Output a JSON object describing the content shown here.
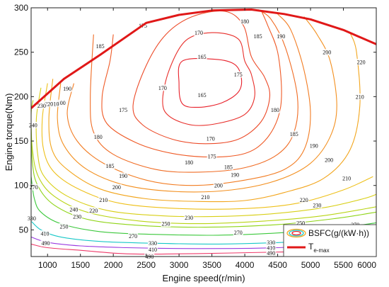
{
  "chart_data": {
    "type": "line",
    "title": "",
    "xlabel": "Engine speed(r/min)",
    "ylabel": "Engine torque(Nm)",
    "xlim": [
      750,
      6000
    ],
    "ylim": [
      20,
      300
    ],
    "xticks": [
      1000,
      1500,
      2000,
      2500,
      3000,
      3500,
      4000,
      4500,
      5000,
      5500,
      6000
    ],
    "yticks": [
      50,
      100,
      150,
      200,
      250,
      300
    ],
    "grid": false,
    "legend_position": "bottom-right",
    "legend": [
      {
        "label": "BSFC(g/(kW·h))",
        "kind": "contour"
      },
      {
        "label": "T",
        "subscript": "e-max",
        "kind": "line",
        "color": "#e01818"
      }
    ],
    "max_torque_curve": {
      "name": "T_e-max",
      "color": "#e01818",
      "points": [
        [
          750,
          187
        ],
        [
          1250,
          220
        ],
        [
          1800,
          247
        ],
        [
          2500,
          283
        ],
        [
          3000,
          292
        ],
        [
          3500,
          297
        ],
        [
          4100,
          298
        ],
        [
          4600,
          293
        ],
        [
          5000,
          287
        ],
        [
          5500,
          275
        ],
        [
          6000,
          259
        ]
      ]
    },
    "contours": [
      {
        "level": 165,
        "color": "#e8202a",
        "closed": true,
        "points": [
          [
            3000,
            215
          ],
          [
            3050,
            240
          ],
          [
            3550,
            242
          ],
          [
            3850,
            236
          ],
          [
            3950,
            220
          ],
          [
            3900,
            205
          ],
          [
            3650,
            193
          ],
          [
            3300,
            188
          ],
          [
            3050,
            192
          ]
        ]
      },
      {
        "level": 170,
        "color": "#e82e2a",
        "closed": true,
        "points": [
          [
            2750,
            195
          ],
          [
            2850,
            230
          ],
          [
            3100,
            263
          ],
          [
            3500,
            272
          ],
          [
            3900,
            265
          ],
          [
            4000,
            240
          ],
          [
            4100,
            225
          ],
          [
            4150,
            200
          ],
          [
            4000,
            180
          ],
          [
            3600,
            170
          ],
          [
            3200,
            168
          ],
          [
            2850,
            178
          ]
        ]
      },
      {
        "level": 175,
        "color": "#ec4a28",
        "closed": true,
        "points": [
          [
            2300,
            190
          ],
          [
            2500,
            235
          ],
          [
            2800,
            270
          ],
          [
            3200,
            290
          ],
          [
            3700,
            296
          ],
          [
            3980,
            280
          ],
          [
            4100,
            245
          ],
          [
            4300,
            222
          ],
          [
            4380,
            200
          ],
          [
            4250,
            172
          ],
          [
            3900,
            152
          ],
          [
            3400,
            147
          ],
          [
            2900,
            152
          ],
          [
            2450,
            168
          ]
        ]
      },
      {
        "level": 180,
        "color": "#ef5a26",
        "closed": false,
        "points": [
          [
            2000,
            270
          ],
          [
            1950,
            240
          ],
          [
            1830,
            200
          ],
          [
            1900,
            170
          ],
          [
            2350,
            148
          ],
          [
            2900,
            136
          ],
          [
            3500,
            132
          ],
          [
            4000,
            136
          ],
          [
            4300,
            150
          ],
          [
            4500,
            175
          ],
          [
            4560,
            205
          ],
          [
            4500,
            250
          ],
          [
            4350,
            280
          ],
          [
            4250,
            297
          ]
        ]
      },
      {
        "level": 185,
        "color": "#f06c24",
        "closed": false,
        "points": [
          [
            1700,
            270
          ],
          [
            1650,
            200
          ],
          [
            1700,
            160
          ],
          [
            2000,
            135
          ],
          [
            2650,
            118
          ],
          [
            3300,
            115
          ],
          [
            4000,
            120
          ],
          [
            4500,
            135
          ],
          [
            4750,
            160
          ],
          [
            4800,
            200
          ],
          [
            4620,
            255
          ],
          [
            4400,
            287
          ],
          [
            4200,
            298
          ]
        ]
      },
      {
        "level": 190,
        "color": "#f27c22",
        "closed": false,
        "points": [
          [
            1400,
            215
          ],
          [
            1300,
            180
          ],
          [
            1450,
            150
          ],
          [
            1850,
            125
          ],
          [
            2500,
            106
          ],
          [
            3200,
            100
          ],
          [
            4000,
            106
          ],
          [
            4600,
            118
          ],
          [
            4900,
            140
          ],
          [
            5000,
            180
          ],
          [
            4900,
            230
          ],
          [
            4700,
            275
          ],
          [
            4500,
            293
          ]
        ]
      },
      {
        "level": 200,
        "color": "#f39020",
        "closed": false,
        "points": [
          [
            1200,
            215
          ],
          [
            1150,
            175
          ],
          [
            1250,
            145
          ],
          [
            1600,
            118
          ],
          [
            2200,
            100
          ],
          [
            3000,
            93
          ],
          [
            3800,
            95
          ],
          [
            4500,
            106
          ],
          [
            5000,
            125
          ],
          [
            5300,
            155
          ],
          [
            5400,
            190
          ],
          [
            5300,
            240
          ],
          [
            5100,
            270
          ],
          [
            4900,
            290
          ]
        ]
      },
      {
        "level": 210,
        "color": "#f2a51c",
        "closed": false,
        "points": [
          [
            1080,
            220
          ],
          [
            1020,
            175
          ],
          [
            1070,
            140
          ],
          [
            1300,
            118
          ],
          [
            1800,
            96
          ],
          [
            2500,
            85
          ],
          [
            3300,
            82
          ],
          [
            4000,
            83
          ],
          [
            4600,
            92
          ],
          [
            5200,
            108
          ],
          [
            5600,
            140
          ],
          [
            5750,
            190
          ],
          [
            5700,
            250
          ],
          [
            5600,
            272
          ]
        ]
      },
      {
        "level": 220,
        "color": "#eec01a",
        "closed": false,
        "points": [
          [
            1000,
            215
          ],
          [
            920,
            175
          ],
          [
            940,
            140
          ],
          [
            1100,
            115
          ],
          [
            1500,
            95
          ],
          [
            2100,
            80
          ],
          [
            3000,
            74
          ],
          [
            4000,
            74
          ],
          [
            4800,
            80
          ],
          [
            5500,
            95
          ],
          [
            5950,
            110
          ]
        ]
      },
      {
        "level": 230,
        "color": "#d8cf16",
        "closed": false,
        "points": [
          [
            900,
            210
          ],
          [
            830,
            175
          ],
          [
            850,
            135
          ],
          [
            950,
            110
          ],
          [
            1300,
            88
          ],
          [
            1900,
            72
          ],
          [
            2700,
            66
          ],
          [
            3500,
            65
          ],
          [
            4400,
            68
          ],
          [
            5200,
            75
          ],
          [
            5800,
            85
          ],
          [
            6000,
            90
          ]
        ]
      },
      {
        "level": 240,
        "color": "#b8d414",
        "closed": false,
        "points": [
          [
            780,
            196
          ],
          [
            750,
            180
          ],
          [
            770,
            140
          ],
          [
            860,
            110
          ],
          [
            1100,
            88
          ],
          [
            1600,
            70
          ],
          [
            2400,
            60
          ],
          [
            3300,
            57
          ],
          [
            4300,
            60
          ],
          [
            5200,
            66
          ],
          [
            6000,
            76
          ]
        ]
      },
      {
        "level": 250,
        "color": "#8ed416",
        "closed": false,
        "points": [
          [
            750,
            165
          ],
          [
            770,
            125
          ],
          [
            850,
            100
          ],
          [
            1100,
            78
          ],
          [
            1600,
            62
          ],
          [
            2400,
            55
          ],
          [
            3400,
            53
          ],
          [
            4500,
            56
          ],
          [
            5400,
            63
          ],
          [
            6000,
            70
          ]
        ]
      },
      {
        "level": 270,
        "color": "#3cc83c",
        "closed": false,
        "points": [
          [
            750,
            110
          ],
          [
            800,
            85
          ],
          [
            900,
            70
          ],
          [
            1200,
            57
          ],
          [
            1800,
            48
          ],
          [
            2600,
            45
          ],
          [
            3600,
            44
          ],
          [
            4600,
            47
          ],
          [
            5500,
            53
          ],
          [
            6000,
            58
          ]
        ]
      },
      {
        "level": 330,
        "color": "#18c8c8",
        "closed": false,
        "points": [
          [
            750,
            60
          ],
          [
            900,
            50
          ],
          [
            1200,
            42
          ],
          [
            1800,
            37
          ],
          [
            2600,
            35
          ],
          [
            3600,
            34
          ],
          [
            4600,
            36
          ],
          [
            5500,
            40
          ],
          [
            6000,
            44
          ]
        ]
      },
      {
        "level": 410,
        "color": "#9a3ae0",
        "closed": false,
        "points": [
          [
            750,
            42
          ],
          [
            1000,
            36
          ],
          [
            1500,
            32
          ],
          [
            2200,
            30
          ],
          [
            3000,
            29
          ],
          [
            3800,
            29
          ],
          [
            4500,
            30
          ],
          [
            5200,
            32
          ],
          [
            6000,
            34
          ]
        ]
      },
      {
        "level": 490,
        "color": "#ee3a6a",
        "closed": false,
        "points": [
          [
            750,
            34
          ],
          [
            1000,
            30
          ],
          [
            1500,
            27
          ],
          [
            2200,
            23
          ],
          [
            3000,
            23
          ],
          [
            3800,
            24
          ],
          [
            4500,
            25
          ],
          [
            5200,
            26
          ],
          [
            6000,
            27
          ]
        ]
      }
    ],
    "contour_labels": [
      {
        "text": "165",
        "x": 3350,
        "y": 202
      },
      {
        "text": "165",
        "x": 3350,
        "y": 245
      },
      {
        "text": "170",
        "x": 3480,
        "y": 153
      },
      {
        "text": "170",
        "x": 3300,
        "y": 272
      },
      {
        "text": "170",
        "x": 2750,
        "y": 210
      },
      {
        "text": "175",
        "x": 3900,
        "y": 225
      },
      {
        "text": "175",
        "x": 2450,
        "y": 280
      },
      {
        "text": "175",
        "x": 2150,
        "y": 185
      },
      {
        "text": "175",
        "x": 3500,
        "y": 133
      },
      {
        "text": "180",
        "x": 4000,
        "y": 285
      },
      {
        "text": "180",
        "x": 1770,
        "y": 155
      },
      {
        "text": "180",
        "x": 4460,
        "y": 185
      },
      {
        "text": "180",
        "x": 3150,
        "y": 126
      },
      {
        "text": "185",
        "x": 1800,
        "y": 257
      },
      {
        "text": "185",
        "x": 4200,
        "y": 268
      },
      {
        "text": "185",
        "x": 1950,
        "y": 122
      },
      {
        "text": "185",
        "x": 3750,
        "y": 121
      },
      {
        "text": "185",
        "x": 4750,
        "y": 158
      },
      {
        "text": "190",
        "x": 1300,
        "y": 209
      },
      {
        "text": "190",
        "x": 4550,
        "y": 268
      },
      {
        "text": "190",
        "x": 2150,
        "y": 111
      },
      {
        "text": "190",
        "x": 3850,
        "y": 112
      },
      {
        "text": "190",
        "x": 5050,
        "y": 145
      },
      {
        "text": "200",
        "x": 1210,
        "y": 193
      },
      {
        "text": "200",
        "x": 5250,
        "y": 250
      },
      {
        "text": "200",
        "x": 2050,
        "y": 98
      },
      {
        "text": "200",
        "x": 3600,
        "y": 100
      },
      {
        "text": "200",
        "x": 5280,
        "y": 129
      },
      {
        "text": "210",
        "x": 1110,
        "y": 192
      },
      {
        "text": "210",
        "x": 5750,
        "y": 200
      },
      {
        "text": "210",
        "x": 1850,
        "y": 84
      },
      {
        "text": "210",
        "x": 3400,
        "y": 87
      },
      {
        "text": "210",
        "x": 5550,
        "y": 108
      },
      {
        "text": "220",
        "x": 1020,
        "y": 192
      },
      {
        "text": "220",
        "x": 5770,
        "y": 239
      },
      {
        "text": "220",
        "x": 1700,
        "y": 72
      },
      {
        "text": "220",
        "x": 4900,
        "y": 84
      },
      {
        "text": "230",
        "x": 910,
        "y": 190
      },
      {
        "text": "230",
        "x": 1450,
        "y": 65
      },
      {
        "text": "230",
        "x": 3150,
        "y": 64
      },
      {
        "text": "230",
        "x": 5100,
        "y": 78
      },
      {
        "text": "240",
        "x": 780,
        "y": 168
      },
      {
        "text": "240",
        "x": 1400,
        "y": 73
      },
      {
        "text": "250",
        "x": 1250,
        "y": 54
      },
      {
        "text": "250",
        "x": 2800,
        "y": 57
      },
      {
        "text": "250",
        "x": 4850,
        "y": 58
      },
      {
        "text": "270",
        "x": 790,
        "y": 98
      },
      {
        "text": "270",
        "x": 2300,
        "y": 43
      },
      {
        "text": "270",
        "x": 3900,
        "y": 47
      },
      {
        "text": "270",
        "x": 5680,
        "y": 56
      },
      {
        "text": "330",
        "x": 760,
        "y": 63
      },
      {
        "text": "330",
        "x": 2600,
        "y": 35
      },
      {
        "text": "330",
        "x": 4400,
        "y": 36
      },
      {
        "text": "410",
        "x": 960,
        "y": 46
      },
      {
        "text": "410",
        "x": 2600,
        "y": 28
      },
      {
        "text": "410",
        "x": 4400,
        "y": 30
      },
      {
        "text": "490",
        "x": 970,
        "y": 35
      },
      {
        "text": "490",
        "x": 2550,
        "y": 20
      },
      {
        "text": "490",
        "x": 4400,
        "y": 24
      }
    ]
  }
}
